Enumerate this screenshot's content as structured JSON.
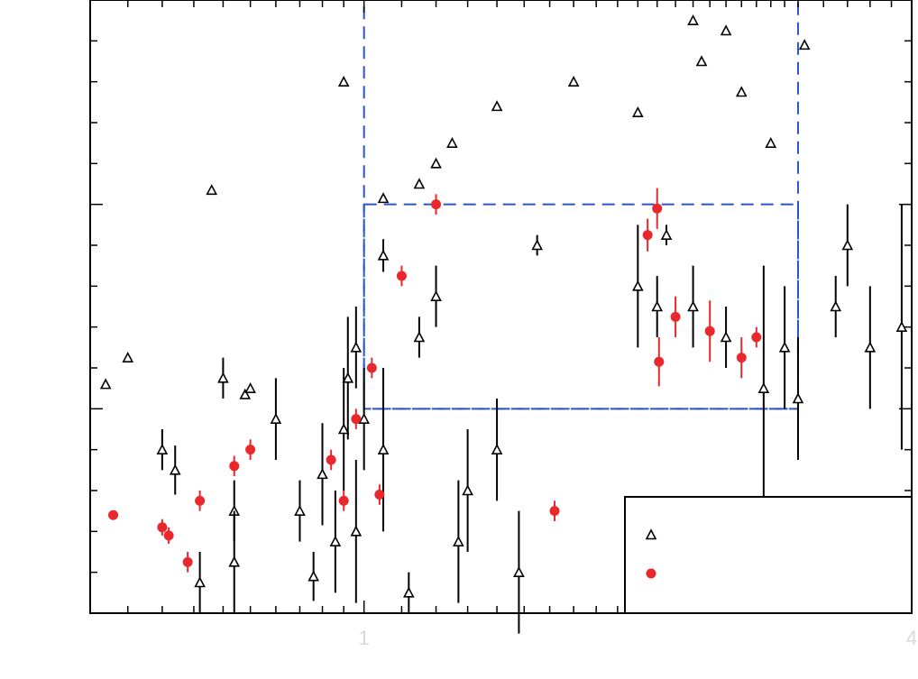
{
  "chart_data": {
    "type": "scatter",
    "title": "",
    "xlabel": "",
    "ylabel": "",
    "x_scale": "log",
    "xlim": [
      0.5,
      4
    ],
    "ylim": [
      0,
      3
    ],
    "grid": false,
    "legend_position": "bottom-right",
    "x_tick_labels": [
      "1",
      "4"
    ],
    "x_minor_ticks": [
      0.55,
      0.6,
      0.65,
      0.7,
      0.75,
      0.8,
      0.85,
      0.9,
      0.95,
      1.1,
      1.2,
      1.3,
      1.4,
      1.5,
      1.6,
      1.7,
      1.8,
      1.9,
      2,
      2.1,
      2.2,
      2.3,
      2.4,
      2.5,
      2.6,
      2.7,
      2.8,
      2.9,
      3,
      3.2,
      3.4,
      3.6,
      3.8
    ],
    "y_ticks": [
      0.2,
      0.4,
      0.6,
      0.8,
      1.0,
      1.2,
      1.4,
      1.6,
      1.8,
      2.0,
      2.2,
      2.4,
      2.6,
      2.8,
      3.0
    ],
    "boxes": [
      {
        "x0": 1.0,
        "x1": 3.0,
        "y0": 1.0,
        "y1": 3.0,
        "color": "#2e56c2"
      },
      {
        "x0": 1.0,
        "x1": 3.0,
        "y0": 1.0,
        "y1": 2.0,
        "color": "#2e56c2"
      }
    ],
    "series": [
      {
        "name": "",
        "marker": "triangle",
        "color": "#000000",
        "points": [
          [
            0.68,
            2.07,
            0
          ],
          [
            0.74,
            1.07,
            0
          ],
          [
            0.75,
            1.1,
            0
          ],
          [
            0.95,
            2.6,
            0
          ],
          [
            1.05,
            2.03,
            0
          ],
          [
            1.15,
            2.1,
            0
          ],
          [
            1.2,
            2.2,
            0
          ],
          [
            1.25,
            2.3,
            0
          ],
          [
            1.4,
            2.48,
            0
          ],
          [
            1.7,
            2.6,
            0
          ],
          [
            2.0,
            2.45,
            0
          ],
          [
            2.3,
            2.9,
            0
          ],
          [
            2.35,
            2.7,
            0
          ],
          [
            2.5,
            2.85,
            0
          ],
          [
            2.6,
            2.55,
            0
          ],
          [
            2.8,
            2.3,
            0
          ],
          [
            3.05,
            2.78,
            0
          ],
          [
            2.15,
            1.85,
            0.05
          ],
          [
            2.1,
            1.5,
            0.15
          ],
          [
            1.05,
            1.75,
            0.08
          ],
          [
            0.52,
            1.12,
            0
          ],
          [
            0.55,
            1.25,
            0
          ],
          [
            0.6,
            0.8,
            0.1
          ],
          [
            0.62,
            0.7,
            0.12
          ],
          [
            0.7,
            1.15,
            0.1
          ],
          [
            0.72,
            0.5,
            0.15
          ],
          [
            0.8,
            0.95,
            0.2
          ],
          [
            0.85,
            0.5,
            0.15
          ],
          [
            0.9,
            0.68,
            0.25
          ],
          [
            0.95,
            0.9,
            0.3
          ],
          [
            0.98,
            0.4,
            0.35
          ],
          [
            1.05,
            0.8,
            0.4
          ],
          [
            1.15,
            1.35,
            0.1
          ],
          [
            1.2,
            1.55,
            0.15
          ],
          [
            1.3,
            0.6,
            0.3
          ],
          [
            1.4,
            0.8,
            0.25
          ],
          [
            1.55,
            1.8,
            0.05
          ],
          [
            2.0,
            1.6,
            0.3
          ],
          [
            2.3,
            1.5,
            0.2
          ],
          [
            2.5,
            1.35,
            0.15
          ],
          [
            2.75,
            1.1,
            0.6
          ],
          [
            2.9,
            1.3,
            0.3
          ],
          [
            3.3,
            1.5,
            0.15
          ],
          [
            3.6,
            1.3,
            0.3
          ],
          [
            3.4,
            1.8,
            0.2
          ],
          [
            3.0,
            1.05,
            0.3
          ],
          [
            3.9,
            1.4,
            0.6
          ],
          [
            0.66,
            0.15,
            0.15
          ],
          [
            0.72,
            0.25,
            0.25
          ],
          [
            0.88,
            0.18,
            0.12
          ],
          [
            0.93,
            0.35,
            0.25
          ],
          [
            1.12,
            0.1,
            0.1
          ],
          [
            1.27,
            0.35,
            0.3
          ],
          [
            1.48,
            0.2,
            0.3
          ],
          [
            0.98,
            1.3,
            0.2
          ],
          [
            0.96,
            1.15,
            0.3
          ],
          [
            1.0,
            0.95,
            0.25
          ]
        ]
      },
      {
        "name": "",
        "marker": "circle",
        "color": "#e8282c",
        "points": [
          [
            0.53,
            0.48,
            0.02
          ],
          [
            0.6,
            0.42,
            0.04
          ],
          [
            0.61,
            0.38,
            0.04
          ],
          [
            0.64,
            0.25,
            0.05
          ],
          [
            0.66,
            0.55,
            0.05
          ],
          [
            0.72,
            0.72,
            0.05
          ],
          [
            0.75,
            0.8,
            0.05
          ],
          [
            0.92,
            0.75,
            0.05
          ],
          [
            0.95,
            0.55,
            0.05
          ],
          [
            0.98,
            0.95,
            0.05
          ],
          [
            1.02,
            1.2,
            0.05
          ],
          [
            1.04,
            0.58,
            0.05
          ],
          [
            1.1,
            1.65,
            0.05
          ],
          [
            1.2,
            2.0,
            0.05
          ],
          [
            1.62,
            0.5,
            0.05
          ],
          [
            2.05,
            1.85,
            0.08
          ],
          [
            2.1,
            1.98,
            0.1
          ],
          [
            2.11,
            1.23,
            0.12
          ],
          [
            2.2,
            1.45,
            0.1
          ],
          [
            2.4,
            1.38,
            0.15
          ],
          [
            2.6,
            1.25,
            0.1
          ],
          [
            2.7,
            1.35,
            0.05
          ]
        ]
      }
    ]
  },
  "legend": {
    "entries": [
      {
        "label": ""
      },
      {
        "label": ""
      }
    ]
  }
}
